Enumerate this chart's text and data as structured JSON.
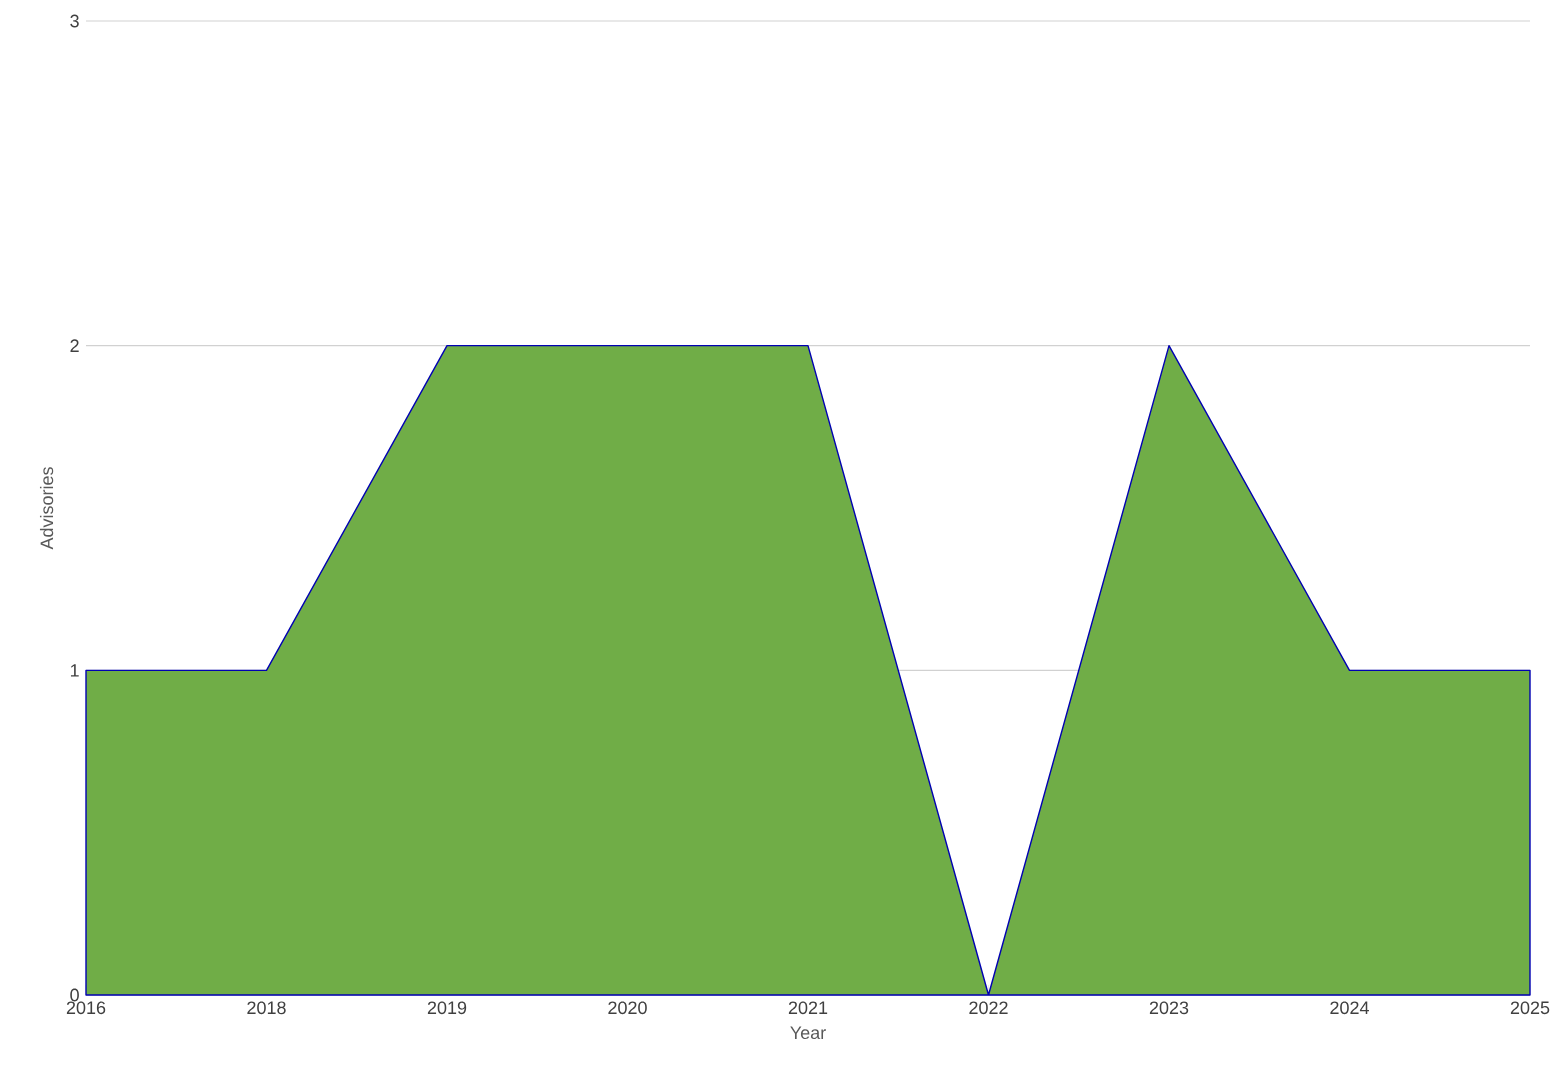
{
  "chart_data": {
    "type": "area",
    "xlabel": "Year",
    "ylabel": "Advisories",
    "categories": [
      "2016",
      "2018",
      "2019",
      "2020",
      "2021",
      "2022",
      "2023",
      "2024",
      "2025"
    ],
    "series": [
      {
        "color": "#70ad47",
        "values": [
          1,
          1,
          2,
          2,
          2,
          0,
          2,
          1,
          1
        ]
      }
    ],
    "ylim": [
      0,
      3
    ],
    "yticks": [
      0,
      1,
      2,
      3
    ],
    "grid": "y",
    "legend": false
  }
}
